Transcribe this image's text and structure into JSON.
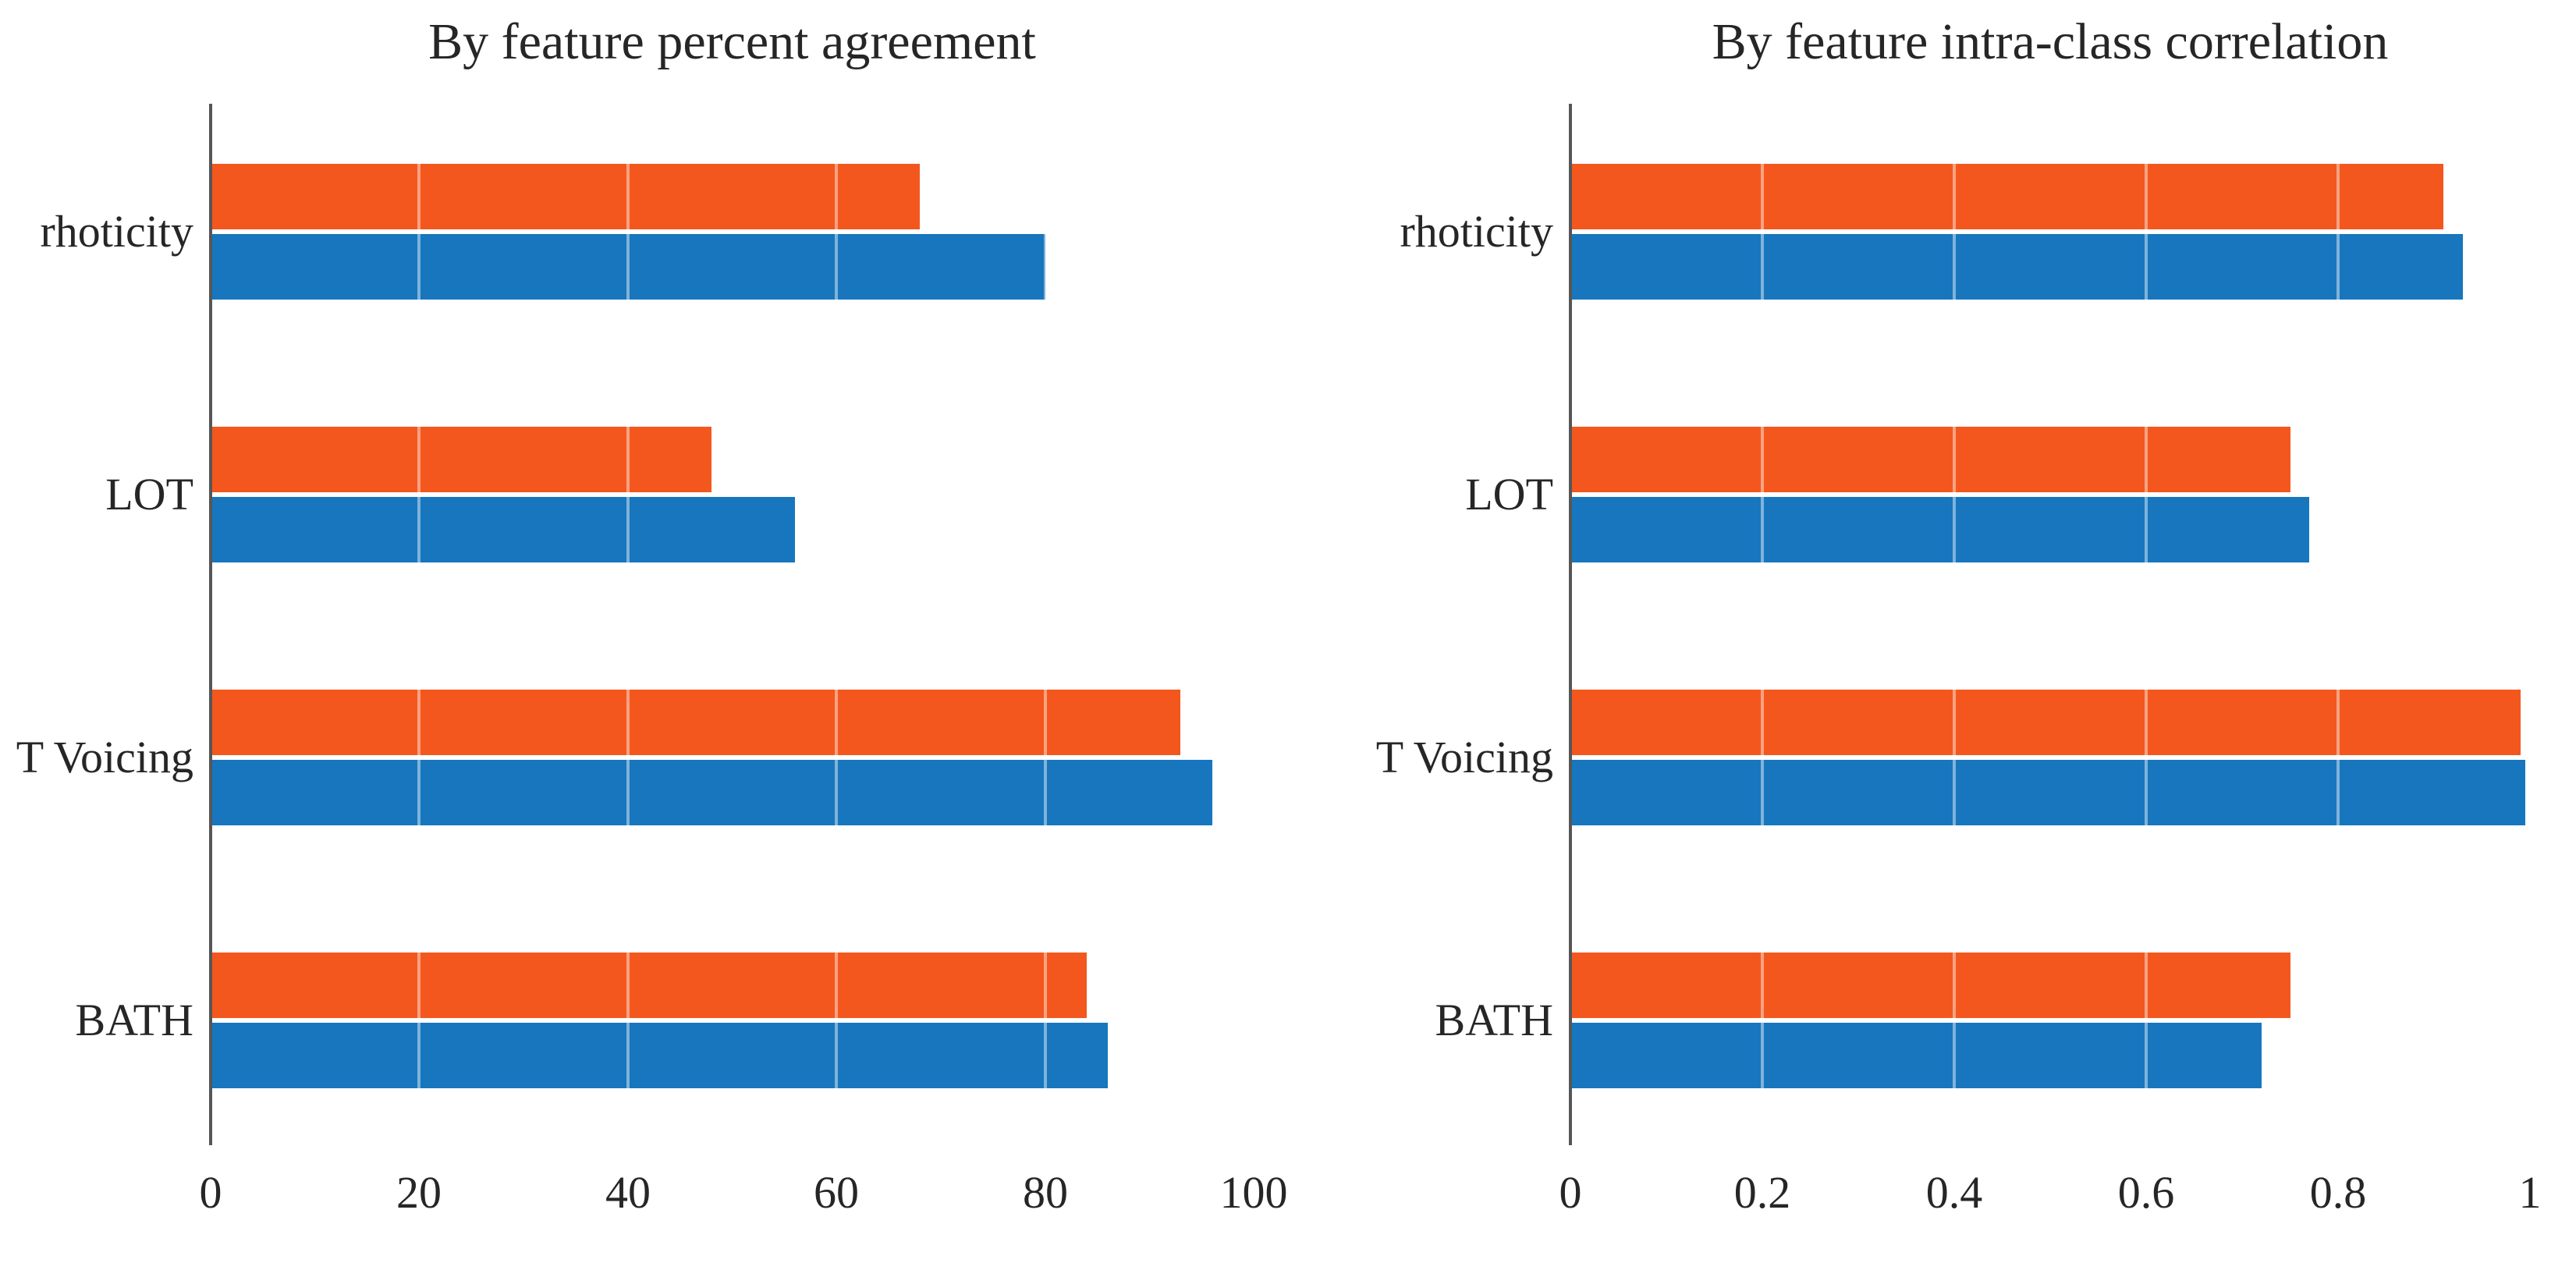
{
  "figure": {
    "background": "#ffffff",
    "text_color": "#262626",
    "axis_color": "#565656"
  },
  "chart_data": [
    {
      "type": "bar",
      "orientation": "horizontal",
      "title": "By feature percent agreement",
      "categories": [
        "rhoticity",
        "LOT",
        "T Voicing",
        "BATH"
      ],
      "series": [
        {
          "name": "orange",
          "color": "#f4571d",
          "values": [
            68,
            48,
            93,
            84
          ]
        },
        {
          "name": "blue",
          "color": "#1776be",
          "values": [
            80,
            56,
            96,
            86
          ]
        }
      ],
      "bar_order_top_to_bottom": [
        "orange",
        "blue"
      ],
      "xlim": [
        0,
        100
      ],
      "xticks": [
        0,
        20,
        40,
        60,
        80,
        100
      ],
      "xtick_labels": [
        "0",
        "20",
        "40",
        "60",
        "80",
        "100"
      ],
      "grid": "light vertical gridlines visible over bars",
      "legend": null
    },
    {
      "type": "bar",
      "orientation": "horizontal",
      "title": "By feature intra-class correlation",
      "categories": [
        "rhoticity",
        "LOT",
        "T Voicing",
        "BATH"
      ],
      "series": [
        {
          "name": "orange",
          "color": "#f4571d",
          "values": [
            0.91,
            0.75,
            0.99,
            0.75
          ]
        },
        {
          "name": "blue",
          "color": "#1776be",
          "values": [
            0.93,
            0.77,
            0.995,
            0.72
          ]
        }
      ],
      "bar_order_top_to_bottom": [
        "orange",
        "blue"
      ],
      "xlim": [
        0,
        1
      ],
      "xticks": [
        0,
        0.2,
        0.4,
        0.6,
        0.8,
        1
      ],
      "xtick_labels": [
        "0",
        "0.2",
        "0.4",
        "0.6",
        "0.8",
        "1"
      ],
      "grid": "light vertical gridlines visible over bars",
      "legend": null
    }
  ]
}
